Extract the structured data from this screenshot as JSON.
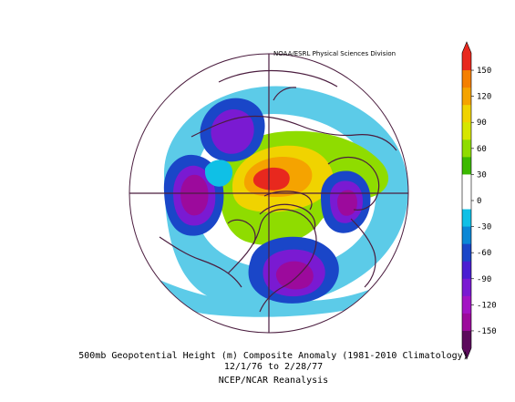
{
  "credit": "NOAA/ESRL Physical Sciences Division",
  "caption": {
    "line1": "500mb Geopotential Height (m) Composite Anomaly (1981-2010 Climatology)",
    "line2": "12/1/76  to 2/28/77",
    "line3": "NCEP/NCAR Reanalysis"
  },
  "colorbar": {
    "ticks": [
      "150",
      "120",
      "90",
      "60",
      "30",
      "0",
      "-30",
      "-60",
      "-90",
      "-120",
      "-150"
    ],
    "colors": [
      "#e8281e",
      "#f57f00",
      "#f5a300",
      "#f0d300",
      "#d6e600",
      "#8fdc00",
      "#3cb900",
      "#ffffff",
      "#ffffff",
      "#0fc0e6",
      "#0a87d6",
      "#1a46c8",
      "#4a1ed2",
      "#7a1ad2",
      "#a314c4",
      "#9c0a9c",
      "#5c0a5c"
    ]
  },
  "map": {
    "projection": "north polar stereographic",
    "anomaly_features": [
      {
        "name": "positive anomaly over Greenland / Arctic",
        "peak_value": "150"
      },
      {
        "name": "negative anomaly over eastern North America",
        "peak_value": "-120"
      },
      {
        "name": "negative anomaly over North Pacific",
        "peak_value": "-120"
      },
      {
        "name": "negative anomaly over Siberia",
        "peak_value": "-120"
      },
      {
        "name": "negative anomaly over Europe",
        "peak_value": "-120"
      }
    ]
  }
}
